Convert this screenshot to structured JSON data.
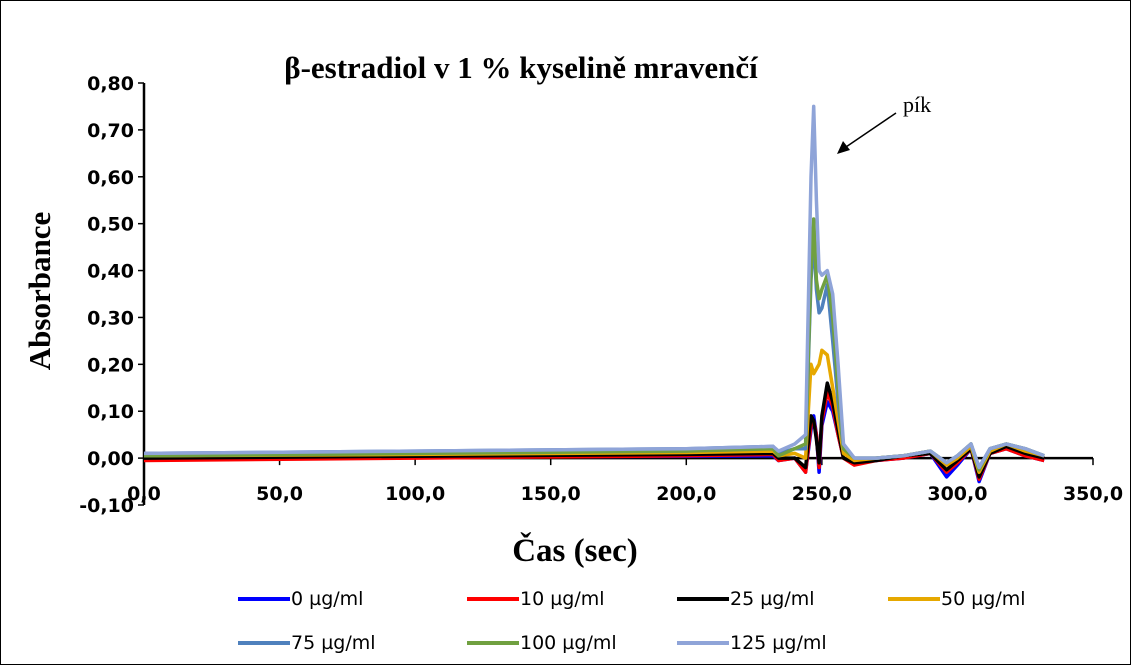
{
  "chart_data": {
    "type": "line",
    "title": "β-estradiol v 1 % kyselině mravenčí",
    "xlabel": "Čas (sec)",
    "ylabel": "Absorbance",
    "xlim": [
      0,
      350
    ],
    "ylim": [
      -0.1,
      0.8
    ],
    "x_ticks": [
      "0,0",
      "50,0",
      "100,0",
      "150,0",
      "200,0",
      "250,0",
      "300,0",
      "350,0"
    ],
    "x_tick_values": [
      0,
      50,
      100,
      150,
      200,
      250,
      300,
      350
    ],
    "y_ticks": [
      "-0,10",
      "0,00",
      "0,10",
      "0,20",
      "0,30",
      "0,40",
      "0,50",
      "0,60",
      "0,70",
      "0,80"
    ],
    "y_tick_values": [
      -0.1,
      0.0,
      0.1,
      0.2,
      0.3,
      0.4,
      0.5,
      0.6,
      0.7,
      0.8
    ],
    "grid": false,
    "legend_position": "bottom",
    "annotation": {
      "text": "pík",
      "points_to": [
        248,
        0.7
      ]
    },
    "series": [
      {
        "name": "0 µg/ml",
        "color": "#0000ff",
        "x": [
          0,
          100,
          200,
          232,
          234,
          240,
          244,
          246,
          247,
          248,
          249,
          250,
          252,
          254,
          256,
          258,
          262,
          270,
          280,
          290,
          296,
          300,
          305,
          308,
          312,
          318,
          325,
          332
        ],
        "y": [
          0.0,
          0.002,
          0.004,
          0.005,
          -0.005,
          0.0,
          -0.03,
          0.06,
          0.09,
          0.05,
          -0.03,
          0.07,
          0.12,
          0.1,
          0.05,
          0.0,
          -0.01,
          -0.005,
          0.0,
          0.01,
          -0.04,
          -0.015,
          0.02,
          -0.05,
          0.01,
          0.02,
          0.005,
          -0.005
        ]
      },
      {
        "name": "10  µg/ml",
        "color": "#ff0000",
        "x": [
          0,
          100,
          200,
          232,
          234,
          240,
          244,
          246,
          247,
          248,
          249,
          250,
          252,
          254,
          256,
          258,
          262,
          270,
          280,
          290,
          296,
          300,
          305,
          308,
          312,
          318,
          325,
          332
        ],
        "y": [
          -0.005,
          0.0,
          0.005,
          0.008,
          -0.005,
          0.0,
          -0.03,
          0.07,
          0.08,
          0.05,
          -0.02,
          0.08,
          0.14,
          0.11,
          0.05,
          0.0,
          -0.015,
          -0.005,
          0.0,
          0.01,
          -0.03,
          -0.01,
          0.02,
          -0.045,
          0.01,
          0.02,
          0.005,
          -0.005
        ]
      },
      {
        "name": "25  µg/ml",
        "color": "#000000",
        "x": [
          0,
          100,
          200,
          232,
          234,
          240,
          244,
          246,
          247,
          248,
          249,
          250,
          252,
          254,
          256,
          258,
          262,
          270,
          280,
          290,
          296,
          300,
          305,
          308,
          312,
          318,
          325,
          332
        ],
        "y": [
          0.0,
          0.004,
          0.008,
          0.01,
          0.0,
          0.0,
          -0.02,
          0.09,
          0.08,
          0.04,
          -0.01,
          0.09,
          0.16,
          0.12,
          0.06,
          0.0,
          -0.01,
          -0.005,
          0.005,
          0.01,
          -0.025,
          -0.005,
          0.02,
          -0.04,
          0.01,
          0.025,
          0.01,
          0.0
        ]
      },
      {
        "name": "50 µg/ml",
        "color": "#e6a800",
        "x": [
          0,
          100,
          200,
          232,
          234,
          240,
          244,
          246,
          247,
          248,
          249,
          250,
          252,
          254,
          256,
          258,
          262,
          270,
          280,
          290,
          296,
          300,
          305,
          308,
          312,
          318,
          325,
          332
        ],
        "y": [
          0.005,
          0.008,
          0.012,
          0.015,
          0.005,
          0.01,
          0.0,
          0.2,
          0.18,
          0.19,
          0.2,
          0.23,
          0.22,
          0.15,
          0.08,
          0.01,
          -0.005,
          0.0,
          0.005,
          0.015,
          -0.015,
          0.0,
          0.025,
          -0.03,
          0.015,
          0.03,
          0.015,
          0.005
        ]
      },
      {
        "name": "75 µg/ml",
        "color": "#4f81bd",
        "x": [
          0,
          100,
          200,
          232,
          234,
          240,
          244,
          246,
          247,
          248,
          249,
          250,
          252,
          254,
          256,
          258,
          262,
          270,
          280,
          290,
          296,
          300,
          305,
          308,
          312,
          318,
          325,
          332
        ],
        "y": [
          0.01,
          0.015,
          0.02,
          0.025,
          0.01,
          0.02,
          0.02,
          0.38,
          0.47,
          0.36,
          0.31,
          0.32,
          0.37,
          0.25,
          0.12,
          0.02,
          0.0,
          0.0,
          0.005,
          0.015,
          -0.01,
          0.005,
          0.03,
          -0.02,
          0.02,
          0.03,
          0.02,
          0.005
        ]
      },
      {
        "name": "100 µg/ml",
        "color": "#70a040",
        "x": [
          0,
          100,
          200,
          232,
          234,
          240,
          244,
          246,
          247,
          248,
          249,
          250,
          252,
          254,
          256,
          258,
          262,
          270,
          280,
          290,
          296,
          300,
          305,
          308,
          312,
          318,
          325,
          332
        ],
        "y": [
          0.005,
          0.01,
          0.015,
          0.02,
          0.005,
          0.02,
          0.03,
          0.4,
          0.51,
          0.38,
          0.34,
          0.36,
          0.39,
          0.3,
          0.15,
          0.02,
          0.0,
          0.0,
          0.005,
          0.015,
          -0.01,
          0.005,
          0.03,
          -0.025,
          0.02,
          0.03,
          0.02,
          0.005
        ]
      },
      {
        "name": "125 µg/ml",
        "color": "#8fa4d8",
        "x": [
          0,
          100,
          200,
          232,
          234,
          240,
          244,
          246,
          247,
          248,
          249,
          250,
          252,
          254,
          256,
          258,
          262,
          270,
          280,
          290,
          296,
          300,
          305,
          308,
          312,
          318,
          325,
          332
        ],
        "y": [
          0.01,
          0.015,
          0.02,
          0.025,
          0.015,
          0.03,
          0.05,
          0.6,
          0.75,
          0.55,
          0.4,
          0.39,
          0.4,
          0.35,
          0.2,
          0.03,
          0.0,
          0.0,
          0.005,
          0.015,
          -0.01,
          0.005,
          0.03,
          -0.02,
          0.02,
          0.03,
          0.02,
          0.005
        ]
      }
    ]
  }
}
